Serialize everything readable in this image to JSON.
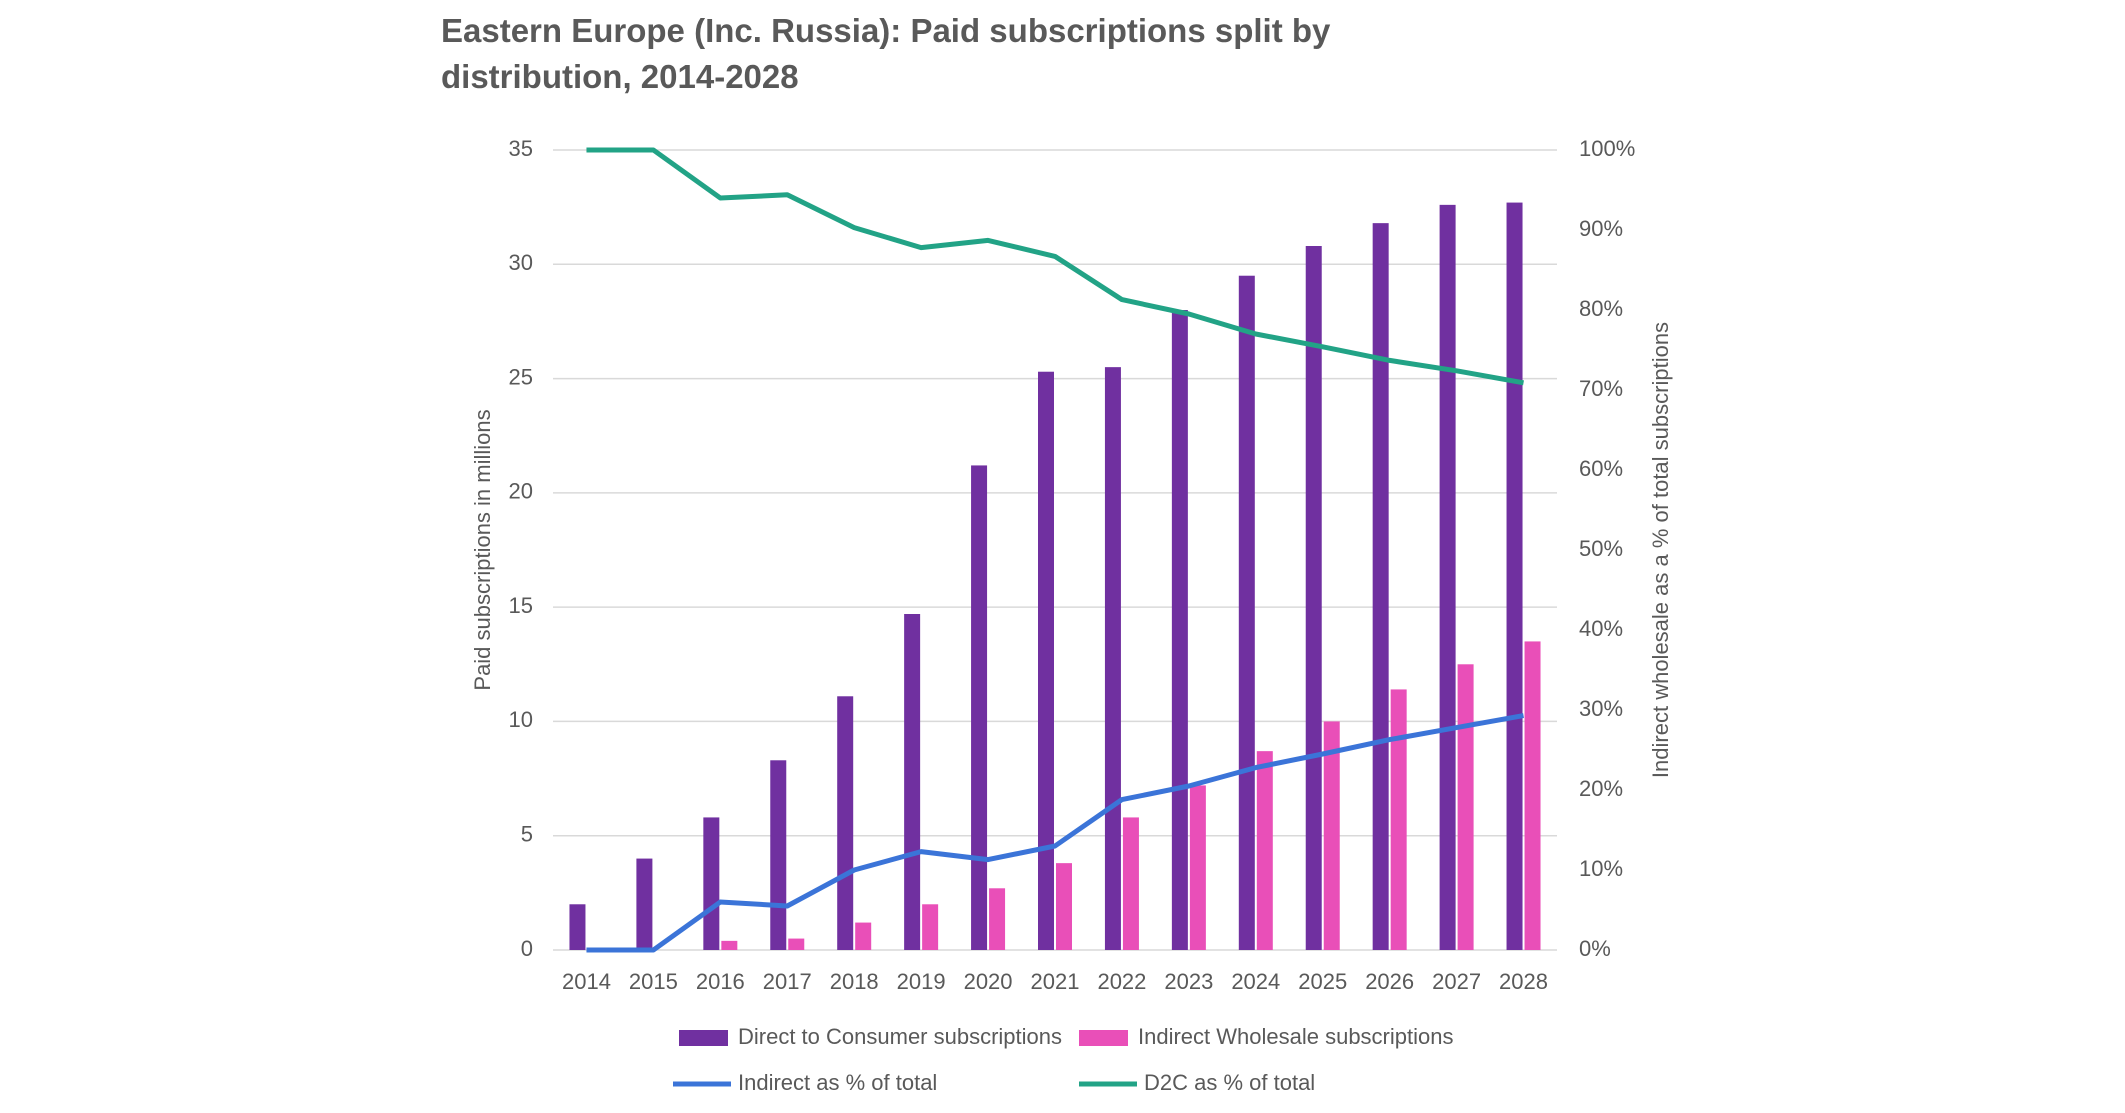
{
  "chart_data": {
    "type": "bar",
    "title": "Eastern Europe (Inc. Russia): Paid subscriptions split by distribution, 2014-2028",
    "y_label": "Paid subscriptions in millions",
    "y2_label": "Indirect wholesale as a % of total subscriptions",
    "categories": [
      "2014",
      "2015",
      "2016",
      "2017",
      "2018",
      "2019",
      "2020",
      "2021",
      "2022",
      "2023",
      "2024",
      "2025",
      "2026",
      "2027",
      "2028"
    ],
    "series": [
      {
        "name": "Direct to Consumer subscriptions",
        "type": "bar",
        "color": "#7030a0",
        "values": [
          2.0,
          4.0,
          5.8,
          8.3,
          11.1,
          14.7,
          21.2,
          25.3,
          25.5,
          28.0,
          29.5,
          30.8,
          31.8,
          32.6,
          32.7
        ]
      },
      {
        "name": "Indirect Wholesale subscriptions",
        "type": "bar",
        "color": "#e94fb8",
        "values": [
          0,
          0,
          0.4,
          0.5,
          1.2,
          2.0,
          2.7,
          3.8,
          5.8,
          7.2,
          8.7,
          10.0,
          11.4,
          12.5,
          13.5
        ]
      },
      {
        "name": "Indirect as % of total",
        "type": "line",
        "axis": "y2",
        "color": "#3b74d8",
        "values": [
          0,
          0,
          6,
          5.5,
          10,
          12.3,
          11.3,
          13,
          18.8,
          20.5,
          22.8,
          24.5,
          26.3,
          27.8,
          29.3
        ]
      },
      {
        "name": "D2C as % of total",
        "type": "line",
        "axis": "y2",
        "color": "#22a386",
        "values": [
          100,
          100,
          94,
          94.4,
          90.3,
          87.8,
          88.7,
          86.7,
          81.3,
          79.5,
          77,
          75.4,
          73.7,
          72.4,
          70.9
        ]
      }
    ],
    "ylim": [
      0,
      35
    ],
    "yticks": [
      0,
      5,
      10,
      15,
      20,
      25,
      30,
      35
    ],
    "y2lim": [
      0,
      100
    ],
    "y2ticks": [
      {
        "value": 0,
        "label": "0%"
      },
      {
        "value": 10,
        "label": "10%"
      },
      {
        "value": 20,
        "label": "20%"
      },
      {
        "value": 30,
        "label": "30%"
      },
      {
        "value": 40,
        "label": "40%"
      },
      {
        "value": 50,
        "label": "50%"
      },
      {
        "value": 60,
        "label": "60%"
      },
      {
        "value": 70,
        "label": "70%"
      },
      {
        "value": 80,
        "label": "80%"
      },
      {
        "value": 90,
        "label": "90%"
      },
      {
        "value": 100,
        "label": "100%"
      }
    ],
    "grid": true
  }
}
